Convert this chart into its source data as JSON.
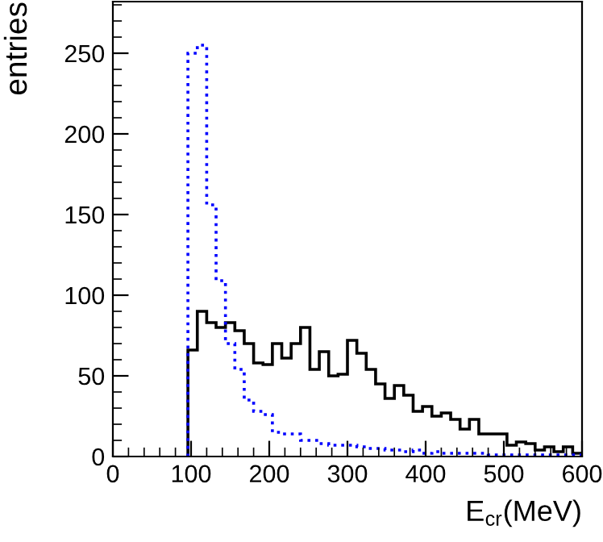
{
  "chart_data": {
    "type": "histogram",
    "xlabel": "E$_{cr}$(MeV)",
    "ylabel": "entries",
    "bins": [
      96,
      108,
      120,
      132,
      144,
      156,
      168,
      180,
      192,
      204,
      216,
      228,
      240,
      252,
      264,
      276,
      288,
      300,
      312,
      324,
      336,
      348,
      360,
      372,
      384,
      396,
      408,
      420,
      432,
      444,
      456,
      468,
      480,
      492,
      504,
      516,
      528,
      540,
      552,
      564,
      576,
      588,
      600
    ],
    "series": [
      {
        "color": "#000000",
        "line_style": "solid",
        "values": [
          66,
          90,
          83,
          80,
          83,
          78,
          70,
          58,
          57,
          70,
          61,
          70,
          80,
          54,
          65,
          50,
          51,
          72,
          64,
          54,
          45,
          36,
          44,
          38,
          28,
          31,
          25,
          27,
          23,
          17,
          23,
          14,
          14,
          14,
          7,
          9,
          8,
          4,
          6,
          3,
          6,
          2
        ]
      },
      {
        "color": "#0000ff",
        "line_style": "dotted",
        "values": [
          250,
          255,
          156,
          109,
          70,
          54,
          35,
          28,
          26,
          15,
          14,
          14,
          10,
          10,
          8,
          7,
          7,
          7,
          6,
          5,
          5,
          4,
          4,
          3,
          4,
          2,
          3,
          2,
          2,
          2,
          2,
          2,
          1,
          1,
          1,
          1,
          1,
          1,
          1,
          1,
          1,
          1
        ]
      }
    ],
    "xlim": [
      0,
      600
    ],
    "xticks": [
      0,
      100,
      200,
      300,
      400,
      500,
      600
    ],
    "ylim": [
      0,
      282
    ],
    "yticks": [
      0,
      50,
      100,
      150,
      200,
      250
    ],
    "grid": false,
    "legend": false
  }
}
